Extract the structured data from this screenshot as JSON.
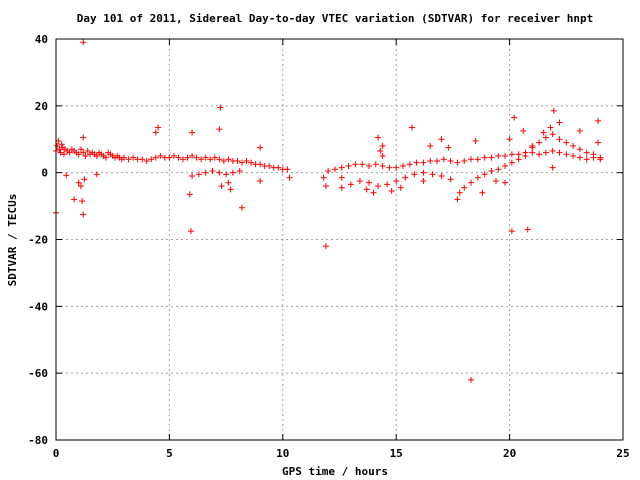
{
  "chart_data": {
    "type": "scatter",
    "title": "Day 101 of 2011, Sidereal Day-to-day VTEC variation (SDTVAR) for receiver hnpt",
    "xlabel": "GPS time / hours",
    "ylabel": "SDTVAR / TECUs",
    "xlim": [
      0,
      25
    ],
    "ylim": [
      -80,
      40
    ],
    "xticks": [
      0,
      5,
      10,
      15,
      20,
      25
    ],
    "yticks": [
      -80,
      -60,
      -40,
      -20,
      0,
      20,
      40
    ],
    "xtick_labels": [
      "0",
      "5",
      "10",
      "15",
      "20",
      "25"
    ],
    "ytick_labels": [
      "-80",
      "-60",
      "-40",
      "-20",
      "0",
      "20",
      "40"
    ],
    "grid": true,
    "marker": "+",
    "point_color": "#ff0000",
    "series": [
      {
        "points": [
          [
            0.0,
            6.5
          ],
          [
            0.05,
            8.0
          ],
          [
            0.1,
            9.5
          ],
          [
            0.15,
            7.0
          ],
          [
            0.2,
            6.0
          ],
          [
            0.25,
            8.5
          ],
          [
            0.3,
            7.5
          ],
          [
            0.35,
            5.5
          ],
          [
            0.4,
            7.0
          ],
          [
            0.5,
            6.5
          ],
          [
            0.6,
            6.0
          ],
          [
            0.7,
            7.0
          ],
          [
            0.8,
            6.5
          ],
          [
            0.9,
            6.0
          ],
          [
            1.0,
            5.5
          ],
          [
            1.1,
            7.0
          ],
          [
            1.2,
            6.0
          ],
          [
            1.3,
            5.0
          ],
          [
            1.4,
            6.5
          ],
          [
            1.5,
            5.5
          ],
          [
            1.6,
            6.0
          ],
          [
            1.7,
            5.5
          ],
          [
            1.8,
            5.0
          ],
          [
            1.9,
            6.0
          ],
          [
            2.0,
            5.5
          ],
          [
            2.1,
            5.0
          ],
          [
            2.2,
            4.5
          ],
          [
            2.3,
            6.0
          ],
          [
            2.4,
            5.5
          ],
          [
            2.5,
            5.0
          ],
          [
            2.6,
            4.5
          ],
          [
            2.7,
            5.0
          ],
          [
            2.8,
            4.5
          ],
          [
            2.9,
            4.0
          ],
          [
            3.0,
            4.5
          ],
          [
            3.2,
            4.0
          ],
          [
            3.4,
            4.5
          ],
          [
            3.6,
            4.0
          ],
          [
            3.8,
            4.0
          ],
          [
            4.0,
            3.5
          ],
          [
            4.2,
            4.0
          ],
          [
            4.4,
            4.5
          ],
          [
            4.6,
            5.0
          ],
          [
            4.8,
            4.5
          ],
          [
            5.0,
            4.5
          ],
          [
            5.2,
            5.0
          ],
          [
            5.4,
            4.5
          ],
          [
            5.6,
            4.0
          ],
          [
            5.8,
            4.5
          ],
          [
            6.0,
            5.0
          ],
          [
            6.2,
            4.5
          ],
          [
            6.4,
            4.0
          ],
          [
            6.6,
            4.5
          ],
          [
            6.8,
            4.0
          ],
          [
            7.0,
            4.5
          ],
          [
            7.2,
            4.0
          ],
          [
            7.4,
            3.5
          ],
          [
            7.6,
            4.0
          ],
          [
            7.8,
            3.5
          ],
          [
            8.0,
            3.5
          ],
          [
            8.2,
            3.0
          ],
          [
            8.4,
            3.5
          ],
          [
            8.6,
            3.0
          ],
          [
            8.8,
            2.5
          ],
          [
            9.0,
            2.5
          ],
          [
            9.2,
            2.0
          ],
          [
            9.4,
            2.0
          ],
          [
            9.6,
            1.5
          ],
          [
            9.8,
            1.5
          ],
          [
            10.0,
            1.0
          ],
          [
            10.2,
            1.0
          ],
          [
            6.0,
            -1.0
          ],
          [
            6.3,
            -0.5
          ],
          [
            6.6,
            0.0
          ],
          [
            6.9,
            0.5
          ],
          [
            7.2,
            0.0
          ],
          [
            7.5,
            -0.5
          ],
          [
            7.8,
            0.0
          ],
          [
            8.1,
            0.5
          ],
          [
            0.0,
            -12.0
          ],
          [
            0.45,
            -0.8
          ],
          [
            0.8,
            -8.0
          ],
          [
            1.0,
            -3.0
          ],
          [
            1.1,
            -4.0
          ],
          [
            1.15,
            -8.5
          ],
          [
            1.2,
            -12.5
          ],
          [
            1.25,
            -2.0
          ],
          [
            1.2,
            39.0
          ],
          [
            1.2,
            10.5
          ],
          [
            1.8,
            -0.5
          ],
          [
            4.4,
            12.0
          ],
          [
            4.5,
            13.5
          ],
          [
            5.9,
            -6.5
          ],
          [
            5.95,
            -17.5
          ],
          [
            6.0,
            12.0
          ],
          [
            7.2,
            13.0
          ],
          [
            7.25,
            19.5
          ],
          [
            7.3,
            -4.0
          ],
          [
            7.6,
            -3.0
          ],
          [
            7.7,
            -5.0
          ],
          [
            8.2,
            -10.5
          ],
          [
            9.0,
            7.5
          ],
          [
            9.0,
            -2.5
          ],
          [
            10.3,
            -1.5
          ],
          [
            11.8,
            -1.5
          ],
          [
            11.9,
            -4.0
          ],
          [
            11.9,
            -22.0
          ],
          [
            12.0,
            0.5
          ],
          [
            12.3,
            1.0
          ],
          [
            12.6,
            1.5
          ],
          [
            12.9,
            2.0
          ],
          [
            13.2,
            2.5
          ],
          [
            13.5,
            2.5
          ],
          [
            13.8,
            2.0
          ],
          [
            14.1,
            2.5
          ],
          [
            14.4,
            2.0
          ],
          [
            14.7,
            1.5
          ],
          [
            15.0,
            1.5
          ],
          [
            15.3,
            2.0
          ],
          [
            15.6,
            2.5
          ],
          [
            15.9,
            3.0
          ],
          [
            16.2,
            3.0
          ],
          [
            16.5,
            3.5
          ],
          [
            16.8,
            3.5
          ],
          [
            17.1,
            4.0
          ],
          [
            17.4,
            3.5
          ],
          [
            17.7,
            3.0
          ],
          [
            18.0,
            3.5
          ],
          [
            18.3,
            4.0
          ],
          [
            18.6,
            4.0
          ],
          [
            18.9,
            4.5
          ],
          [
            19.2,
            4.5
          ],
          [
            19.5,
            5.0
          ],
          [
            19.8,
            5.0
          ],
          [
            20.1,
            5.5
          ],
          [
            20.4,
            5.5
          ],
          [
            20.7,
            6.0
          ],
          [
            21.0,
            6.0
          ],
          [
            21.3,
            5.5
          ],
          [
            21.6,
            6.0
          ],
          [
            21.9,
            6.5
          ],
          [
            22.2,
            6.0
          ],
          [
            22.5,
            5.5
          ],
          [
            22.8,
            5.0
          ],
          [
            23.1,
            4.5
          ],
          [
            23.4,
            4.0
          ],
          [
            23.7,
            4.5
          ],
          [
            24.0,
            4.0
          ],
          [
            12.6,
            -4.5
          ],
          [
            13.0,
            -3.5
          ],
          [
            13.4,
            -2.5
          ],
          [
            13.8,
            -3.0
          ],
          [
            14.2,
            -4.0
          ],
          [
            14.6,
            -3.5
          ],
          [
            15.0,
            -2.5
          ],
          [
            15.4,
            -1.5
          ],
          [
            15.8,
            -0.5
          ],
          [
            16.2,
            0.0
          ],
          [
            16.6,
            -0.5
          ],
          [
            17.0,
            -1.0
          ],
          [
            17.4,
            -2.0
          ],
          [
            17.7,
            -8.0
          ],
          [
            17.8,
            -6.0
          ],
          [
            18.0,
            -4.5
          ],
          [
            18.3,
            -3.0
          ],
          [
            18.6,
            -1.5
          ],
          [
            18.9,
            -0.5
          ],
          [
            19.2,
            0.5
          ],
          [
            19.5,
            1.0
          ],
          [
            19.8,
            2.0
          ],
          [
            20.1,
            3.0
          ],
          [
            20.4,
            4.0
          ],
          [
            20.7,
            5.0
          ],
          [
            21.0,
            7.5
          ],
          [
            21.3,
            9.0
          ],
          [
            21.6,
            10.5
          ],
          [
            21.9,
            11.5
          ],
          [
            22.2,
            10.0
          ],
          [
            22.5,
            9.0
          ],
          [
            22.8,
            8.0
          ],
          [
            23.1,
            7.0
          ],
          [
            23.4,
            6.0
          ],
          [
            23.7,
            5.5
          ],
          [
            24.0,
            4.5
          ],
          [
            14.2,
            10.5
          ],
          [
            14.3,
            6.5
          ],
          [
            14.4,
            8.0
          ],
          [
            14.4,
            5.0
          ],
          [
            15.7,
            13.5
          ],
          [
            16.5,
            8.0
          ],
          [
            17.0,
            10.0
          ],
          [
            17.3,
            7.5
          ],
          [
            18.3,
            -62.0
          ],
          [
            18.5,
            9.5
          ],
          [
            18.8,
            -6.0
          ],
          [
            19.4,
            -2.5
          ],
          [
            19.8,
            -3.0
          ],
          [
            20.0,
            10.0
          ],
          [
            20.1,
            -17.5
          ],
          [
            20.2,
            16.5
          ],
          [
            20.6,
            12.5
          ],
          [
            20.8,
            -17.0
          ],
          [
            21.0,
            8.0
          ],
          [
            21.5,
            12.0
          ],
          [
            21.8,
            13.5
          ],
          [
            21.9,
            1.5
          ],
          [
            21.95,
            18.5
          ],
          [
            22.2,
            15.0
          ],
          [
            23.1,
            12.5
          ],
          [
            23.9,
            15.5
          ],
          [
            23.9,
            9.0
          ],
          [
            12.6,
            -1.5
          ],
          [
            13.7,
            -5.0
          ],
          [
            14.0,
            -6.0
          ],
          [
            14.8,
            -5.5
          ],
          [
            15.2,
            -4.5
          ],
          [
            16.2,
            -2.5
          ]
        ]
      }
    ]
  }
}
